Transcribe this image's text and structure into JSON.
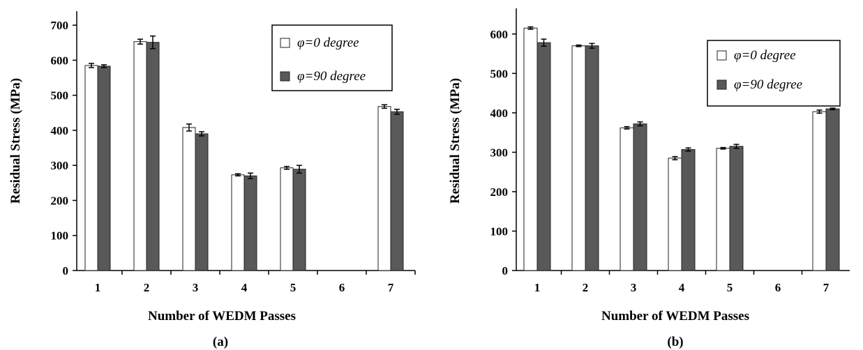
{
  "chart_data": [
    {
      "type": "bar",
      "caption": "(a)",
      "xlabel": "Number of WEDM Passes",
      "ylabel": "Residual Stress (MPa)",
      "categories": [
        "1",
        "2",
        "3",
        "4",
        "5",
        "6",
        "7"
      ],
      "ylim": [
        0,
        700
      ],
      "yticks": [
        0,
        100,
        200,
        300,
        400,
        500,
        600,
        700
      ],
      "grid": false,
      "legend_position": "top-right",
      "series": [
        {
          "name": "φ=0 degree",
          "color": "#ffffff",
          "values": [
            585,
            653,
            408,
            273,
            293,
            null,
            468
          ],
          "errors": [
            6,
            7,
            10,
            3,
            4,
            null,
            5
          ]
        },
        {
          "name": "φ=90 degree",
          "color": "#595959",
          "values": [
            583,
            651,
            390,
            270,
            289,
            null,
            453
          ],
          "errors": [
            4,
            18,
            6,
            8,
            11,
            null,
            7
          ]
        }
      ]
    },
    {
      "type": "bar",
      "caption": "(b)",
      "xlabel": "Number of WEDM Passes",
      "ylabel": "Residual Stress (MPa)",
      "categories": [
        "1",
        "2",
        "3",
        "4",
        "5",
        "6",
        "7"
      ],
      "ylim": [
        0,
        650
      ],
      "yticks": [
        0,
        100,
        200,
        300,
        400,
        500,
        600
      ],
      "grid": false,
      "legend_position": "top-right",
      "series": [
        {
          "name": "φ=0 degree",
          "color": "#ffffff",
          "values": [
            615,
            570,
            362,
            285,
            310,
            null,
            403
          ],
          "errors": [
            3,
            2,
            3,
            4,
            2,
            null,
            4
          ]
        },
        {
          "name": "φ=90 degree",
          "color": "#595959",
          "values": [
            578,
            570,
            372,
            307,
            315,
            null,
            410
          ],
          "errors": [
            9,
            6,
            5,
            4,
            5,
            null,
            2
          ]
        }
      ]
    }
  ]
}
